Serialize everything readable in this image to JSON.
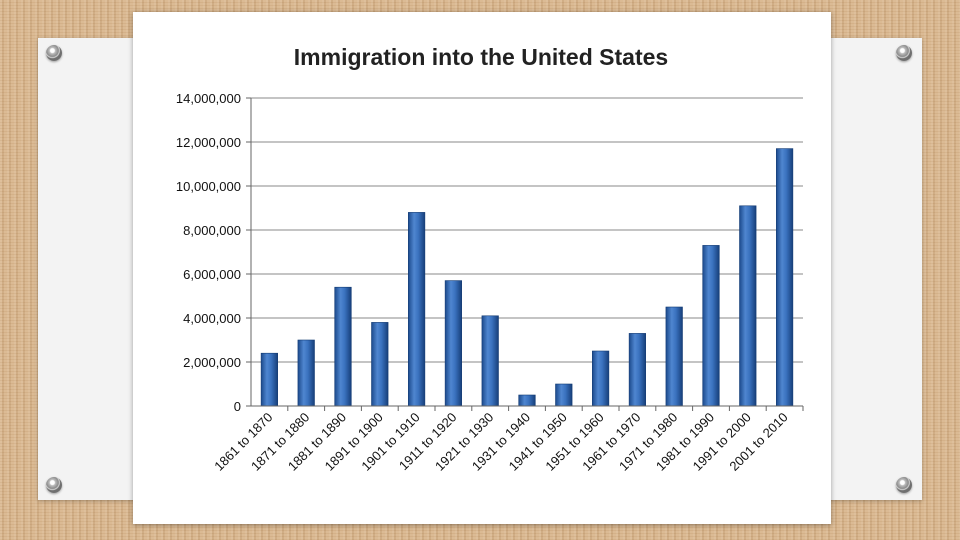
{
  "chart_data": {
    "type": "bar",
    "title": "Immigration into the United States",
    "xlabel": "",
    "ylabel": "",
    "ylim": [
      0,
      14000000
    ],
    "yticks": [
      "0",
      "2,000,000",
      "4,000,000",
      "6,000,000",
      "8,000,000",
      "10,000,000",
      "12,000,000",
      "14,000,000"
    ],
    "categories": [
      "1861 to 1870",
      "1871 to 1880",
      "1881 to 1890",
      "1891 to 1900",
      "1901 to 1910",
      "1911 to 1920",
      "1921 to 1930",
      "1931 to 1940",
      "1941 to 1950",
      "1951 to 1960",
      "1961 to 1970",
      "1971 to 1980",
      "1981 to 1990",
      "1991 to 2000",
      "2001 to 2010"
    ],
    "values": [
      2400000,
      3000000,
      5400000,
      3800000,
      8800000,
      5700000,
      4100000,
      500000,
      1000000,
      2500000,
      3300000,
      4500000,
      7300000,
      9100000,
      11700000
    ],
    "grid": true,
    "legend": "none",
    "bar_color": "#2f66b0"
  }
}
